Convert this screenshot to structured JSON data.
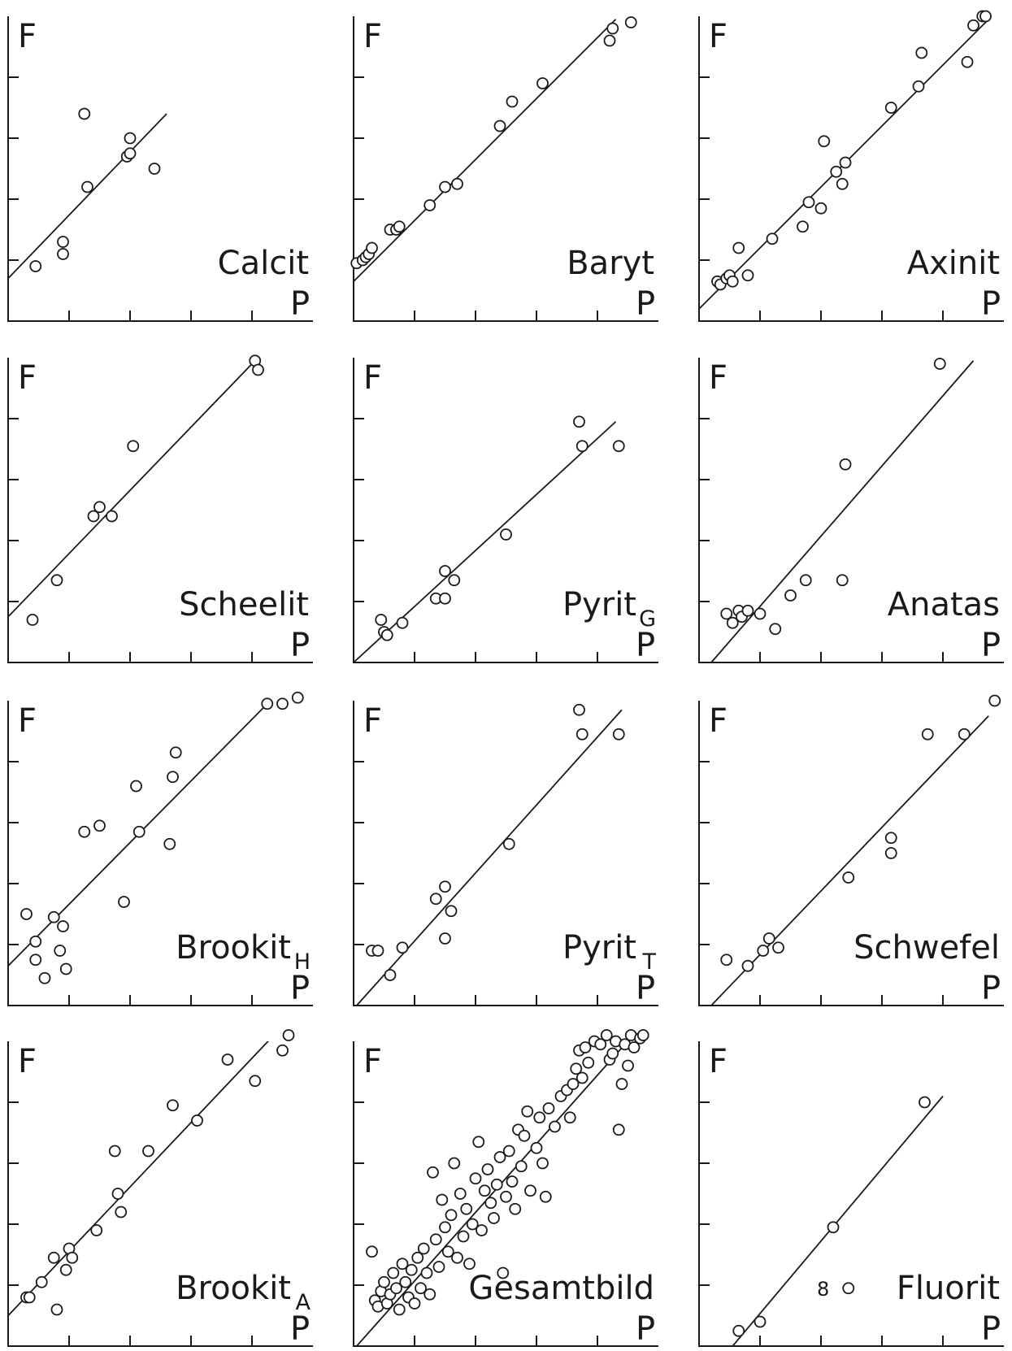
{
  "figure": {
    "axis_x_label": "P",
    "axis_y_label": "F"
  },
  "chart_data": [
    {
      "type": "scatter",
      "name": "Calcit",
      "subscript": "",
      "xlim": [
        0,
        5
      ],
      "ylim": [
        0,
        5
      ],
      "xticks": [
        1,
        2,
        3,
        4
      ],
      "yticks": [
        1,
        2,
        3,
        4
      ],
      "points": [
        [
          0.45,
          0.9
        ],
        [
          0.9,
          1.3
        ],
        [
          0.9,
          1.1
        ],
        [
          1.3,
          2.2
        ],
        [
          1.25,
          3.4
        ],
        [
          1.95,
          2.7
        ],
        [
          2.0,
          2.75
        ],
        [
          2.0,
          3.0
        ],
        [
          2.4,
          2.5
        ]
      ],
      "fit": [
        [
          0,
          0.7
        ],
        [
          2.6,
          3.4
        ]
      ]
    },
    {
      "type": "scatter",
      "name": "Baryt",
      "subscript": "",
      "xlim": [
        0,
        5
      ],
      "ylim": [
        0,
        5
      ],
      "xticks": [
        1,
        2,
        3,
        4
      ],
      "yticks": [
        1,
        2,
        3,
        4
      ],
      "points": [
        [
          0.05,
          0.95
        ],
        [
          0.15,
          1.0
        ],
        [
          0.2,
          1.05
        ],
        [
          0.25,
          1.1
        ],
        [
          0.3,
          1.2
        ],
        [
          0.6,
          1.5
        ],
        [
          0.7,
          1.5
        ],
        [
          0.75,
          1.55
        ],
        [
          1.25,
          1.9
        ],
        [
          1.5,
          2.2
        ],
        [
          1.7,
          2.25
        ],
        [
          2.4,
          3.2
        ],
        [
          2.6,
          3.6
        ],
        [
          3.1,
          3.9
        ],
        [
          4.2,
          4.6
        ],
        [
          4.25,
          4.8
        ],
        [
          4.55,
          4.9
        ]
      ],
      "fit": [
        [
          0,
          0.65
        ],
        [
          4.3,
          4.95
        ]
      ]
    },
    {
      "type": "scatter",
      "name": "Axinit",
      "subscript": "",
      "xlim": [
        0,
        5
      ],
      "ylim": [
        0,
        5
      ],
      "xticks": [
        1,
        2,
        3,
        4
      ],
      "yticks": [
        1,
        2,
        3,
        4
      ],
      "points": [
        [
          0.3,
          0.65
        ],
        [
          0.35,
          0.6
        ],
        [
          0.45,
          0.7
        ],
        [
          0.5,
          0.75
        ],
        [
          0.55,
          0.65
        ],
        [
          0.65,
          1.2
        ],
        [
          0.8,
          0.75
        ],
        [
          1.2,
          1.35
        ],
        [
          1.7,
          1.55
        ],
        [
          1.8,
          1.95
        ],
        [
          2.0,
          1.85
        ],
        [
          2.05,
          2.95
        ],
        [
          2.25,
          2.45
        ],
        [
          2.35,
          2.25
        ],
        [
          2.4,
          2.6
        ],
        [
          3.15,
          3.5
        ],
        [
          3.6,
          3.85
        ],
        [
          3.65,
          4.4
        ],
        [
          4.4,
          4.25
        ],
        [
          4.5,
          4.85
        ],
        [
          4.65,
          5.0
        ],
        [
          4.7,
          5.0
        ]
      ],
      "fit": [
        [
          0,
          0.2
        ],
        [
          4.75,
          4.95
        ]
      ]
    },
    {
      "type": "scatter",
      "name": "Scheelit",
      "subscript": "",
      "xlim": [
        0,
        5
      ],
      "ylim": [
        0,
        5
      ],
      "xticks": [
        1,
        2,
        3,
        4
      ],
      "yticks": [
        1,
        2,
        3,
        4
      ],
      "points": [
        [
          0.4,
          0.7
        ],
        [
          0.8,
          1.35
        ],
        [
          1.4,
          2.4
        ],
        [
          1.5,
          2.55
        ],
        [
          1.7,
          2.4
        ],
        [
          2.05,
          3.55
        ],
        [
          4.05,
          4.95
        ],
        [
          4.1,
          4.8
        ]
      ],
      "fit": [
        [
          0,
          0.75
        ],
        [
          4.05,
          4.95
        ]
      ]
    },
    {
      "type": "scatter",
      "name": "Pyrit",
      "subscript": "G",
      "xlim": [
        0,
        5
      ],
      "ylim": [
        0,
        5
      ],
      "xticks": [
        1,
        2,
        3,
        4
      ],
      "yticks": [
        1,
        2,
        3,
        4
      ],
      "points": [
        [
          0.45,
          0.7
        ],
        [
          0.5,
          0.5
        ],
        [
          0.55,
          0.45
        ],
        [
          0.8,
          0.65
        ],
        [
          1.35,
          1.05
        ],
        [
          1.5,
          1.05
        ],
        [
          1.5,
          1.5
        ],
        [
          1.65,
          1.35
        ],
        [
          2.5,
          2.1
        ],
        [
          3.7,
          3.95
        ],
        [
          3.75,
          3.55
        ],
        [
          4.35,
          3.55
        ]
      ],
      "fit": [
        [
          0,
          0.0
        ],
        [
          4.3,
          3.95
        ]
      ]
    },
    {
      "type": "scatter",
      "name": "Anatas",
      "subscript": "",
      "xlim": [
        0,
        5
      ],
      "ylim": [
        0,
        5
      ],
      "xticks": [
        1,
        2,
        3,
        4
      ],
      "yticks": [
        1,
        2,
        3,
        4
      ],
      "points": [
        [
          0.45,
          0.8
        ],
        [
          0.55,
          0.65
        ],
        [
          0.65,
          0.85
        ],
        [
          0.7,
          0.75
        ],
        [
          0.8,
          0.85
        ],
        [
          1.0,
          0.8
        ],
        [
          1.25,
          0.55
        ],
        [
          1.5,
          1.1
        ],
        [
          1.75,
          1.35
        ],
        [
          2.35,
          1.35
        ],
        [
          2.4,
          3.25
        ],
        [
          3.95,
          4.9
        ]
      ],
      "fit": [
        [
          0.2,
          0.0
        ],
        [
          4.5,
          4.95
        ]
      ]
    },
    {
      "type": "scatter",
      "name": "Brookit",
      "subscript": "H",
      "xlim": [
        0,
        5
      ],
      "ylim": [
        0,
        5
      ],
      "xticks": [
        1,
        2,
        3,
        4
      ],
      "yticks": [
        1,
        2,
        3,
        4
      ],
      "points": [
        [
          0.3,
          1.5
        ],
        [
          0.45,
          1.05
        ],
        [
          0.45,
          0.75
        ],
        [
          0.6,
          0.45
        ],
        [
          0.75,
          1.45
        ],
        [
          0.85,
          0.9
        ],
        [
          0.9,
          1.3
        ],
        [
          0.95,
          0.6
        ],
        [
          1.25,
          2.85
        ],
        [
          1.5,
          2.95
        ],
        [
          1.9,
          1.7
        ],
        [
          2.1,
          3.6
        ],
        [
          2.15,
          2.85
        ],
        [
          2.65,
          2.65
        ],
        [
          2.7,
          3.75
        ],
        [
          2.75,
          4.15
        ],
        [
          4.25,
          4.95
        ],
        [
          4.5,
          4.95
        ],
        [
          4.75,
          5.05
        ]
      ],
      "fit": [
        [
          0,
          0.65
        ],
        [
          4.45,
          5.15
        ]
      ]
    },
    {
      "type": "scatter",
      "name": "Pyrit",
      "subscript": "T",
      "xlim": [
        0,
        5
      ],
      "ylim": [
        0,
        5
      ],
      "xticks": [
        1,
        2,
        3,
        4
      ],
      "yticks": [
        1,
        2,
        3,
        4
      ],
      "points": [
        [
          0.3,
          0.9
        ],
        [
          0.4,
          0.9
        ],
        [
          0.6,
          0.5
        ],
        [
          0.8,
          0.95
        ],
        [
          1.35,
          1.75
        ],
        [
          1.5,
          1.95
        ],
        [
          1.5,
          1.1
        ],
        [
          1.6,
          1.55
        ],
        [
          2.55,
          2.65
        ],
        [
          3.7,
          4.85
        ],
        [
          3.75,
          4.45
        ],
        [
          4.35,
          4.45
        ]
      ],
      "fit": [
        [
          0.05,
          0.0
        ],
        [
          4.4,
          4.85
        ]
      ]
    },
    {
      "type": "scatter",
      "name": "Schwefel",
      "subscript": "",
      "xlim": [
        0,
        5
      ],
      "ylim": [
        0,
        5
      ],
      "xticks": [
        1,
        2,
        3,
        4
      ],
      "yticks": [
        1,
        2,
        3,
        4
      ],
      "points": [
        [
          0.45,
          0.75
        ],
        [
          0.8,
          0.65
        ],
        [
          1.05,
          0.9
        ],
        [
          1.15,
          1.1
        ],
        [
          1.3,
          0.95
        ],
        [
          2.45,
          2.1
        ],
        [
          3.15,
          2.5
        ],
        [
          3.15,
          2.75
        ],
        [
          3.75,
          4.45
        ],
        [
          4.35,
          4.45
        ],
        [
          4.85,
          5.0
        ]
      ],
      "fit": [
        [
          0.2,
          0.0
        ],
        [
          4.75,
          4.75
        ]
      ]
    },
    {
      "type": "scatter",
      "name": "Brookit",
      "subscript": "A",
      "xlim": [
        0,
        5
      ],
      "ylim": [
        0,
        5
      ],
      "xticks": [
        1,
        2,
        3,
        4
      ],
      "yticks": [
        1,
        2,
        3,
        4
      ],
      "points": [
        [
          0.3,
          0.8
        ],
        [
          0.35,
          0.8
        ],
        [
          0.55,
          1.05
        ],
        [
          0.75,
          1.45
        ],
        [
          0.8,
          0.6
        ],
        [
          0.95,
          1.25
        ],
        [
          1.0,
          1.6
        ],
        [
          1.05,
          1.45
        ],
        [
          1.45,
          1.9
        ],
        [
          1.75,
          3.2
        ],
        [
          1.8,
          2.5
        ],
        [
          1.85,
          2.2
        ],
        [
          2.3,
          3.2
        ],
        [
          2.7,
          3.95
        ],
        [
          3.1,
          3.7
        ],
        [
          3.6,
          4.7
        ],
        [
          4.05,
          4.35
        ],
        [
          4.5,
          4.85
        ],
        [
          4.6,
          5.1
        ]
      ],
      "fit": [
        [
          0,
          0.5
        ],
        [
          4.5,
          5.25
        ]
      ]
    },
    {
      "type": "scatter",
      "name": "Gesamtbild",
      "subscript": "",
      "xlim": [
        0,
        5
      ],
      "ylim": [
        0,
        5
      ],
      "xticks": [
        1,
        2,
        3,
        4
      ],
      "yticks": [
        1,
        2,
        3,
        4
      ],
      "points": [
        [
          0.3,
          1.55
        ],
        [
          0.35,
          0.75
        ],
        [
          0.4,
          0.65
        ],
        [
          0.45,
          0.9
        ],
        [
          0.5,
          1.05
        ],
        [
          0.55,
          0.7
        ],
        [
          0.6,
          0.85
        ],
        [
          0.65,
          1.2
        ],
        [
          0.7,
          0.95
        ],
        [
          0.75,
          0.6
        ],
        [
          0.8,
          1.35
        ],
        [
          0.85,
          1.05
        ],
        [
          0.9,
          0.8
        ],
        [
          0.95,
          1.25
        ],
        [
          1.0,
          0.7
        ],
        [
          1.05,
          1.45
        ],
        [
          1.1,
          0.95
        ],
        [
          1.15,
          1.6
        ],
        [
          1.2,
          1.2
        ],
        [
          1.25,
          0.85
        ],
        [
          1.3,
          2.85
        ],
        [
          1.35,
          1.75
        ],
        [
          1.4,
          1.3
        ],
        [
          1.45,
          2.4
        ],
        [
          1.5,
          1.95
        ],
        [
          1.55,
          1.55
        ],
        [
          1.6,
          2.15
        ],
        [
          1.65,
          3.0
        ],
        [
          1.7,
          1.45
        ],
        [
          1.75,
          2.5
        ],
        [
          1.8,
          1.8
        ],
        [
          1.85,
          2.25
        ],
        [
          1.9,
          1.35
        ],
        [
          1.95,
          2.0
        ],
        [
          2.0,
          2.75
        ],
        [
          2.05,
          3.35
        ],
        [
          2.1,
          1.9
        ],
        [
          2.15,
          2.55
        ],
        [
          2.2,
          2.9
        ],
        [
          2.25,
          2.35
        ],
        [
          2.3,
          2.1
        ],
        [
          2.35,
          2.65
        ],
        [
          2.4,
          3.1
        ],
        [
          2.45,
          1.2
        ],
        [
          2.5,
          2.45
        ],
        [
          2.55,
          3.2
        ],
        [
          2.6,
          2.7
        ],
        [
          2.65,
          2.25
        ],
        [
          2.7,
          3.55
        ],
        [
          2.75,
          2.95
        ],
        [
          2.8,
          3.45
        ],
        [
          2.85,
          3.85
        ],
        [
          2.9,
          2.55
        ],
        [
          3.0,
          3.25
        ],
        [
          3.05,
          3.75
        ],
        [
          3.1,
          3.0
        ],
        [
          3.15,
          2.45
        ],
        [
          3.2,
          3.9
        ],
        [
          3.3,
          3.6
        ],
        [
          3.4,
          4.1
        ],
        [
          3.5,
          4.2
        ],
        [
          3.55,
          3.75
        ],
        [
          3.6,
          4.3
        ],
        [
          3.65,
          4.55
        ],
        [
          3.7,
          4.85
        ],
        [
          3.75,
          4.4
        ],
        [
          3.8,
          4.9
        ],
        [
          3.85,
          4.65
        ],
        [
          3.95,
          5.0
        ],
        [
          4.05,
          4.95
        ],
        [
          4.15,
          5.1
        ],
        [
          4.2,
          4.7
        ],
        [
          4.25,
          4.8
        ],
        [
          4.3,
          5.0
        ],
        [
          4.35,
          3.55
        ],
        [
          4.4,
          4.3
        ],
        [
          4.45,
          4.95
        ],
        [
          4.5,
          4.6
        ],
        [
          4.55,
          5.1
        ],
        [
          4.6,
          4.9
        ],
        [
          4.7,
          5.05
        ],
        [
          4.75,
          5.1
        ]
      ],
      "fit": [
        [
          0.05,
          0.0
        ],
        [
          4.45,
          4.95
        ]
      ]
    },
    {
      "type": "scatter",
      "name": "Fluorit",
      "subscript": "",
      "xlim": [
        0,
        5
      ],
      "ylim": [
        0,
        5
      ],
      "xticks": [
        1,
        2,
        3,
        4
      ],
      "yticks": [
        1,
        2,
        3,
        4
      ],
      "points": [
        [
          0.65,
          0.25
        ],
        [
          1.0,
          0.4
        ],
        [
          2.2,
          1.95
        ],
        [
          2.45,
          0.95
        ],
        [
          3.7,
          4.0
        ]
      ],
      "fit": [
        [
          0.55,
          0.0
        ],
        [
          4.0,
          4.1
        ]
      ],
      "note": "8"
    }
  ]
}
